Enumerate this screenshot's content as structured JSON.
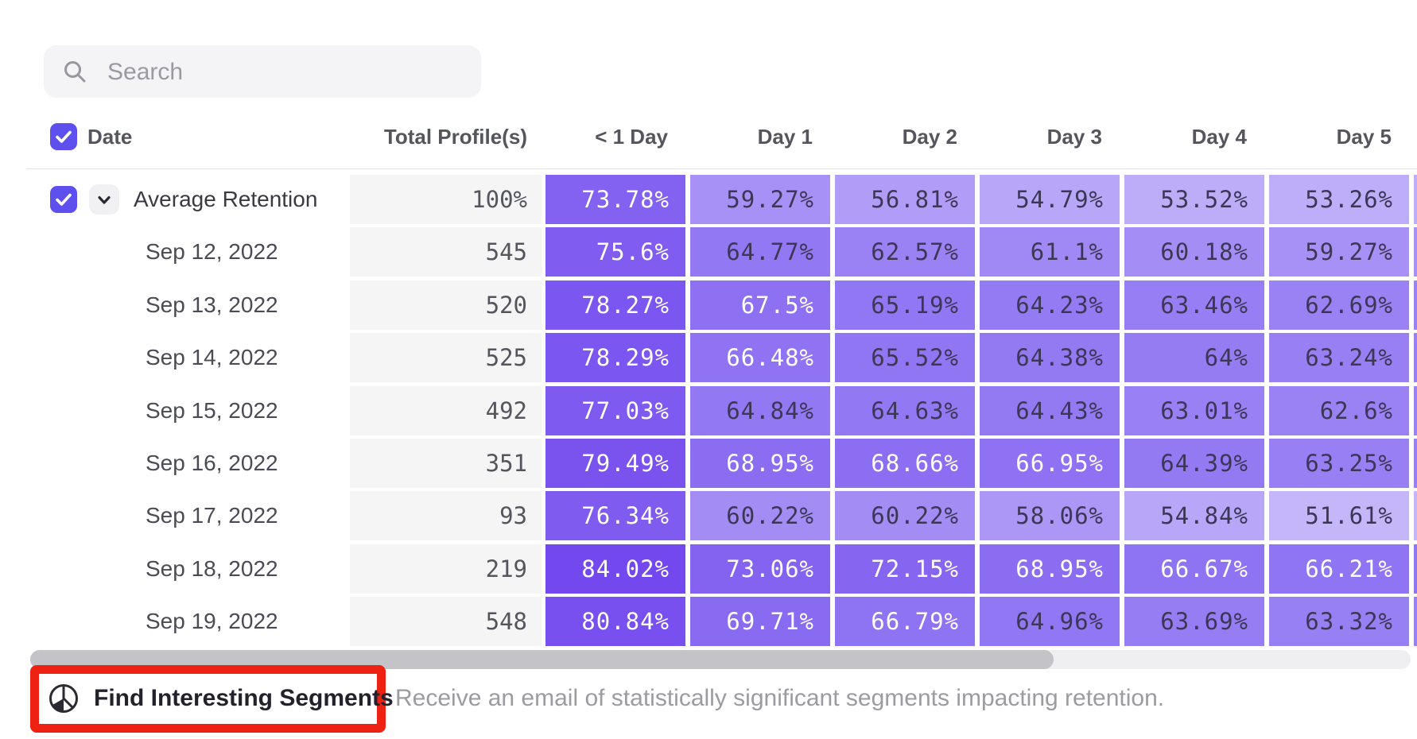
{
  "search": {
    "placeholder": "Search"
  },
  "table": {
    "columns": [
      "Date",
      "Total Profile(s)",
      "< 1 Day",
      "Day 1",
      "Day 2",
      "Day 3",
      "Day 4",
      "Day 5"
    ],
    "header_checkbox_checked": true,
    "rows": [
      {
        "label": "Average Retention",
        "is_average": true,
        "checkbox_checked": true,
        "total": "100%",
        "values": [
          73.78,
          59.27,
          56.81,
          54.79,
          53.52,
          53.26
        ]
      },
      {
        "label": "Sep 12, 2022",
        "total": "545",
        "values": [
          75.6,
          64.77,
          62.57,
          61.1,
          60.18,
          59.27
        ]
      },
      {
        "label": "Sep 13, 2022",
        "total": "520",
        "values": [
          78.27,
          67.5,
          65.19,
          64.23,
          63.46,
          62.69
        ]
      },
      {
        "label": "Sep 14, 2022",
        "total": "525",
        "values": [
          78.29,
          66.48,
          65.52,
          64.38,
          64,
          63.24
        ]
      },
      {
        "label": "Sep 15, 2022",
        "total": "492",
        "values": [
          77.03,
          64.84,
          64.63,
          64.43,
          63.01,
          62.6
        ]
      },
      {
        "label": "Sep 16, 2022",
        "total": "351",
        "values": [
          79.49,
          68.95,
          68.66,
          66.95,
          64.39,
          63.25
        ]
      },
      {
        "label": "Sep 17, 2022",
        "total": "93",
        "values": [
          76.34,
          60.22,
          60.22,
          58.06,
          54.84,
          51.61
        ]
      },
      {
        "label": "Sep 18, 2022",
        "total": "219",
        "values": [
          84.02,
          73.06,
          72.15,
          68.95,
          66.67,
          66.21
        ]
      },
      {
        "label": "Sep 19, 2022",
        "total": "548",
        "values": [
          80.84,
          69.71,
          66.79,
          64.96,
          63.69,
          63.32
        ]
      }
    ]
  },
  "footer": {
    "button_label": "Find Interesting Segments",
    "description": "Receive an email of statistically significant segments impacting retention."
  },
  "colors": {
    "accent": "#5d50ef",
    "red": "#ee2213",
    "heat_low": "#cbbcfa",
    "heat_mid": "#9177f3",
    "heat_high": "#7146ee",
    "heat_mid_value": 65,
    "heat_min_value": 50,
    "heat_max_value": 85,
    "white_text_threshold": 66,
    "cell_text_dark": "#3d3756",
    "cell_text_light": "#ffffff"
  }
}
